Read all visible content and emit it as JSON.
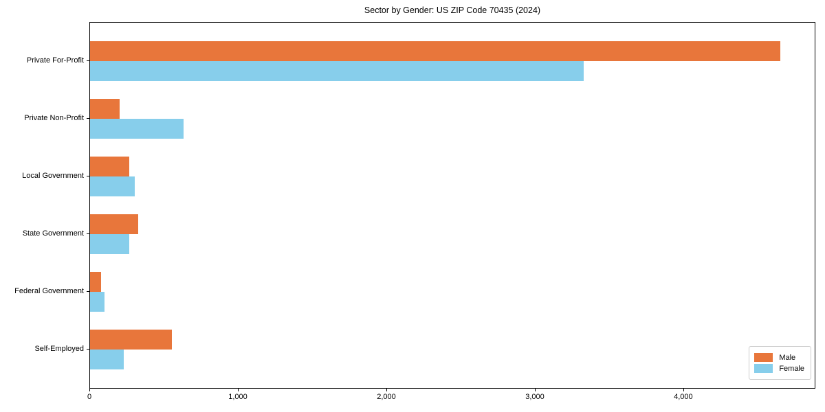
{
  "chart_data": {
    "type": "bar",
    "orientation": "horizontal",
    "title": "Sector by Gender: US ZIP Code 70435 (2024)",
    "categories": [
      "Private For-Profit",
      "Private Non-Profit",
      "Local Government",
      "State Government",
      "Federal Government",
      "Self-Employed"
    ],
    "series": [
      {
        "name": "Male",
        "color": "#e8763b",
        "values": [
          4650,
          200,
          265,
          325,
          73,
          550
        ]
      },
      {
        "name": "Female",
        "color": "#87ceeb",
        "values": [
          3325,
          630,
          300,
          265,
          95,
          227
        ]
      }
    ],
    "xlabel": "",
    "ylabel": "",
    "xlim": [
      0,
      4880
    ],
    "xticks": {
      "values": [
        0,
        1000,
        2000,
        3000,
        4000
      ],
      "labels": [
        "0",
        "1,000",
        "2,000",
        "3,000",
        "4,000"
      ]
    },
    "grid": false,
    "legend": {
      "position": "lower-right",
      "entries": [
        "Male",
        "Female"
      ]
    },
    "colors": {
      "axis": "#000000",
      "legend_border": "#cccccc",
      "background": "#ffffff"
    }
  }
}
